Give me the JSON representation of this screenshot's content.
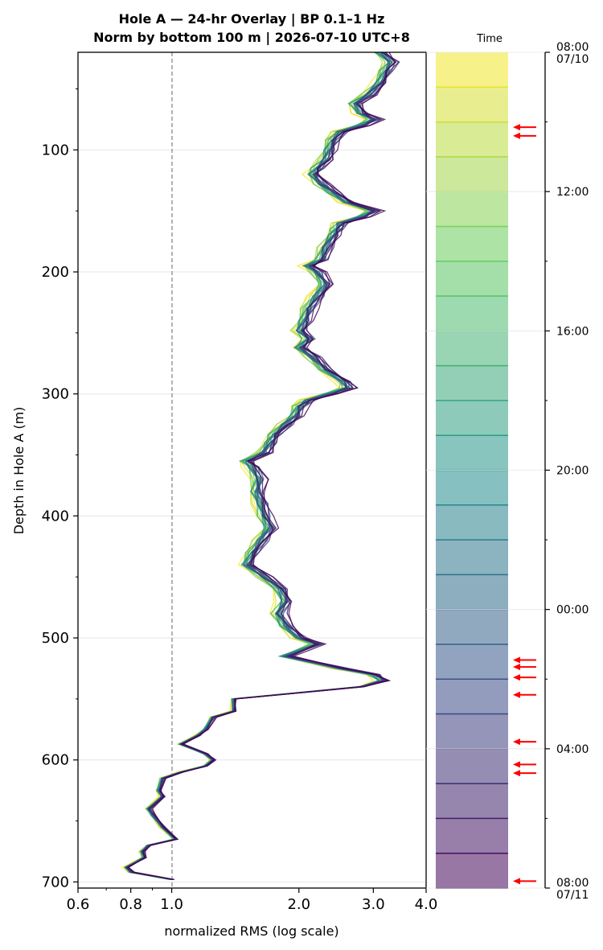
{
  "title_line1": "Hole A — 24-hr Overlay  |  BP 0.1–1 Hz",
  "title_line2": "Norm by bottom 100 m  |  2026-07-10 UTC+8",
  "time_axis_title": "Time",
  "colors": {
    "arrow": "#ff0000",
    "reference_line": "#808080",
    "grid": "#e6e6e6"
  },
  "chart_data": [
    {
      "type": "line",
      "orientation": "vertical profile (x = normalized RMS, y = depth)",
      "xlabel": "normalized RMS  (log scale)",
      "ylabel": "Depth in Hole A (m)",
      "xscale": "log",
      "xlim": [
        0.6,
        4.0
      ],
      "ylim": [
        705,
        20
      ],
      "xticks": [
        0.6,
        0.8,
        1.0,
        2.0,
        3.0,
        4.0
      ],
      "xtick_labels": [
        "0.6",
        "0.8",
        "1.0",
        "2.0",
        "3.0",
        "4.0"
      ],
      "yticks": [
        100,
        200,
        300,
        400,
        500,
        600,
        700
      ],
      "ytick_labels": [
        "100",
        "200",
        "300",
        "400",
        "500",
        "600",
        "700"
      ],
      "reference_line_x": 1.0,
      "grid": true,
      "colormap": "viridis",
      "series_count": 24,
      "depth": [
        20,
        28,
        35,
        45,
        55,
        62,
        70,
        75,
        80,
        85,
        92,
        100,
        108,
        115,
        120,
        128,
        135,
        143,
        150,
        155,
        160,
        165,
        170,
        180,
        190,
        195,
        200,
        210,
        220,
        230,
        240,
        248,
        255,
        262,
        270,
        280,
        290,
        295,
        300,
        305,
        310,
        318,
        325,
        333,
        340,
        348,
        355,
        360,
        370,
        380,
        390,
        400,
        410,
        420,
        430,
        440,
        450,
        460,
        470,
        480,
        490,
        500,
        505,
        515,
        525,
        530,
        535,
        540,
        550,
        560,
        565,
        575,
        580,
        587,
        595,
        600,
        605,
        610,
        615,
        625,
        630,
        640,
        645,
        655,
        665,
        670,
        675,
        680,
        688,
        692,
        698
      ],
      "median_profile": [
        3.1,
        3.3,
        3.2,
        3.1,
        2.9,
        2.7,
        2.8,
        3.0,
        2.8,
        2.5,
        2.4,
        2.35,
        2.3,
        2.2,
        2.15,
        2.25,
        2.4,
        2.6,
        3.0,
        2.8,
        2.5,
        2.45,
        2.4,
        2.3,
        2.25,
        2.1,
        2.2,
        2.3,
        2.2,
        2.1,
        2.05,
        2.0,
        2.1,
        2.0,
        2.15,
        2.3,
        2.55,
        2.6,
        2.35,
        2.1,
        2.0,
        1.95,
        1.85,
        1.75,
        1.7,
        1.65,
        1.5,
        1.55,
        1.6,
        1.58,
        1.62,
        1.65,
        1.7,
        1.62,
        1.55,
        1.5,
        1.65,
        1.8,
        1.85,
        1.78,
        1.85,
        2.0,
        2.2,
        1.85,
        2.5,
        3.0,
        3.15,
        2.8,
        1.4,
        1.4,
        1.25,
        1.2,
        1.15,
        1.05,
        1.2,
        1.25,
        1.2,
        1.05,
        0.95,
        0.93,
        0.95,
        0.88,
        0.9,
        0.95,
        1.02,
        0.88,
        0.85,
        0.86,
        0.78,
        0.8,
        1.0
      ],
      "curve_offsets_log": [
        -0.03,
        -0.025,
        -0.02,
        -0.017,
        -0.014,
        -0.012,
        -0.01,
        -0.008,
        -0.006,
        -0.004,
        -0.002,
        0.0,
        0.002,
        0.004,
        0.006,
        0.008,
        0.01,
        0.012,
        0.015,
        0.018,
        0.021,
        0.025,
        0.03,
        0.035
      ]
    },
    {
      "type": "colorbar",
      "title": "Time",
      "colormap": "viridis",
      "bands": 24,
      "tick_labels": [
        "08:00",
        "12:00",
        "16:00",
        "20:00",
        "00:00",
        "04:00",
        "08:00"
      ],
      "tick_sublabels": [
        "07/10",
        "",
        "",
        "",
        "",
        "",
        "07/11"
      ],
      "tick_hours_from_start": [
        0,
        4,
        8,
        12,
        16,
        20,
        24
      ],
      "arrow_markers_hours_from_start": [
        2.15,
        2.4,
        17.45,
        17.65,
        17.95,
        18.45,
        19.8,
        20.45,
        20.7,
        23.8
      ]
    }
  ]
}
